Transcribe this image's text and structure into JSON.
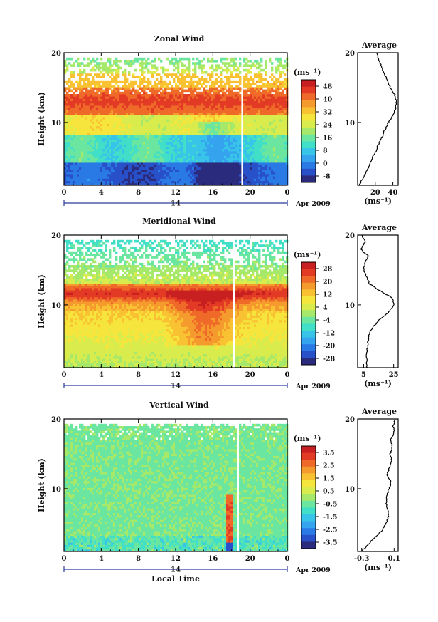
{
  "chart_data": [
    {
      "type": "heatmap",
      "title": "Zonal Wind",
      "ylabel": "Height (km)",
      "xlabel": "",
      "x_ticks": [
        "0",
        "4",
        "8",
        "12",
        "16",
        "20",
        "0"
      ],
      "y_ticks": [
        "10",
        "20"
      ],
      "xlim": [
        0,
        24
      ],
      "ylim": [
        1,
        20
      ],
      "date_label": "14",
      "month_label": "Apr 2009",
      "colorbar": {
        "unit": "(ms⁻¹)",
        "ticks": [
          "48",
          "40",
          "32",
          "24",
          "16",
          "8",
          "0",
          "-8"
        ],
        "range": [
          -8,
          52
        ]
      },
      "average_profile": {
        "title": "Average",
        "ylabel_ticks": [
          "10",
          "20"
        ],
        "x_ticks": [
          "20",
          "40"
        ],
        "xlim": [
          0,
          46
        ],
        "xlabel": "(ms⁻¹)",
        "heights": [
          1,
          2,
          3,
          4,
          5,
          6,
          7,
          8,
          9,
          10,
          11,
          12,
          13,
          14,
          15,
          16,
          17,
          18,
          19,
          20
        ],
        "values": [
          2,
          6,
          10,
          14,
          17,
          21,
          24,
          28,
          31,
          35,
          40,
          43,
          44,
          42,
          37,
          34,
          30,
          27,
          24,
          22
        ]
      }
    },
    {
      "type": "heatmap",
      "title": "Meridional Wind",
      "ylabel": "Height (km)",
      "xlabel": "",
      "x_ticks": [
        "0",
        "4",
        "8",
        "12",
        "16",
        "20",
        "0"
      ],
      "y_ticks": [
        "10",
        "20"
      ],
      "xlim": [
        0,
        24
      ],
      "ylim": [
        1,
        20
      ],
      "date_label": "14",
      "month_label": "Apr 2009",
      "colorbar": {
        "unit": "(ms⁻¹)",
        "ticks": [
          "28",
          "20",
          "12",
          "4",
          "-4",
          "-12",
          "-20",
          "-28"
        ],
        "range": [
          -32,
          32
        ]
      },
      "average_profile": {
        "title": "Average",
        "ylabel_ticks": [
          "10",
          "20"
        ],
        "x_ticks": [
          "5",
          "25"
        ],
        "xlim": [
          1,
          28
        ],
        "xlabel": "(ms⁻¹)",
        "heights": [
          1,
          2,
          3,
          4,
          5,
          6,
          7,
          8,
          9,
          10,
          11,
          12,
          13,
          14,
          15,
          16,
          17,
          18,
          19,
          20
        ],
        "values": [
          7,
          7,
          7,
          7.5,
          8,
          9,
          12,
          16,
          22,
          25,
          24,
          16,
          9,
          7,
          5,
          6,
          8,
          3,
          6,
          4
        ]
      }
    },
    {
      "type": "heatmap",
      "title": "Vertical Wind",
      "ylabel": "Height (km)",
      "xlabel": "Local Time",
      "x_ticks": [
        "0",
        "4",
        "8",
        "12",
        "16",
        "20",
        "0"
      ],
      "y_ticks": [
        "10",
        "20"
      ],
      "xlim": [
        0,
        24
      ],
      "ylim": [
        1,
        20
      ],
      "date_label": "14",
      "month_label": "Apr 2009",
      "colorbar": {
        "unit": "(ms⁻¹)",
        "ticks": [
          "3.5",
          "2.5",
          "1.5",
          "0.5",
          "-0.5",
          "-1.5",
          "-2.5",
          "-3.5"
        ],
        "range": [
          -4,
          4
        ]
      },
      "average_profile": {
        "title": "Average",
        "ylabel_ticks": [
          "10",
          "20"
        ],
        "x_ticks": [
          "-0.3",
          "0.1"
        ],
        "xlim": [
          -0.35,
          0.15
        ],
        "xlabel": "(ms⁻¹)",
        "heights": [
          1,
          2,
          3,
          4,
          5,
          6,
          7,
          8,
          9,
          10,
          11,
          12,
          13,
          14,
          15,
          16,
          17,
          18,
          19,
          20
        ],
        "values": [
          -0.3,
          -0.22,
          -0.14,
          -0.05,
          0,
          0.03,
          0.02,
          0.0,
          0.01,
          0.04,
          0.06,
          0.01,
          0.04,
          0.07,
          0.05,
          0.08,
          0.06,
          0.1,
          0.09,
          0.11
        ]
      }
    }
  ]
}
